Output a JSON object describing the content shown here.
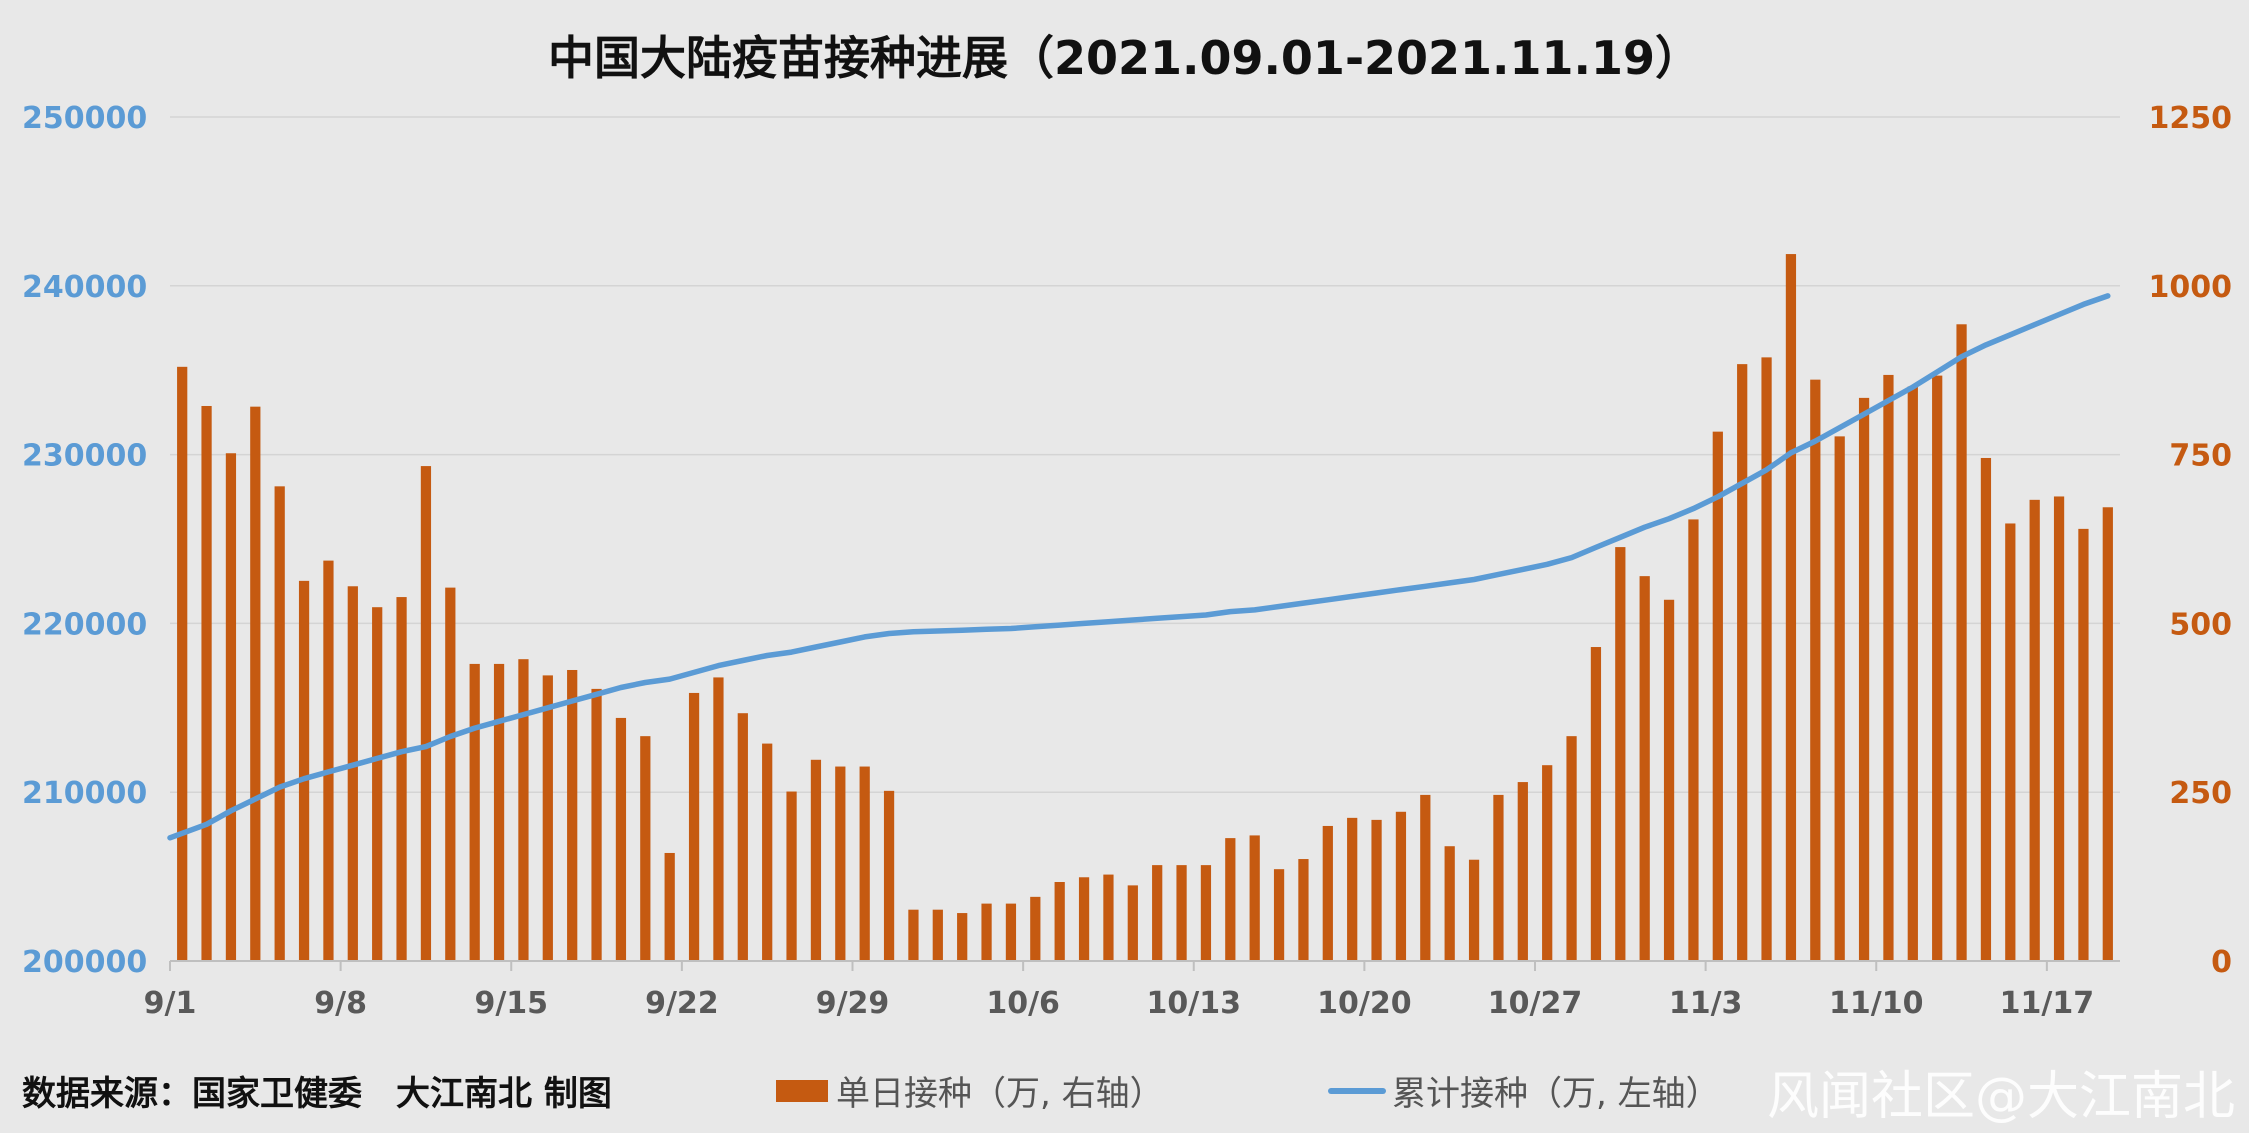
{
  "header": {
    "title": "中国大陆疫苗接种进展（2021.09.01-2021.11.19）"
  },
  "footer": {
    "source": "数据来源：国家卫健委　大江南北 制图",
    "watermark": "风闻社区@大江南北"
  },
  "legend": {
    "bar_label": "单日接种（万, 右轴）",
    "line_label": "累计接种（万, 左轴）"
  },
  "colors": {
    "bar": "#c55a11",
    "line": "#5b9bd5",
    "background": "#e8e8e8",
    "grid": "#d4d4d4"
  },
  "chart_data": {
    "type": "bar+line",
    "title": "中国大陆疫苗接种进展（2021.09.01-2021.11.19）",
    "grid": true,
    "legend_position": "bottom",
    "x_tick_labels": [
      "9/1",
      "9/8",
      "9/15",
      "9/22",
      "9/29",
      "10/6",
      "10/13",
      "10/20",
      "10/27",
      "11/3",
      "11/10",
      "11/17"
    ],
    "y_left": {
      "range": [
        200000,
        250000
      ],
      "ticks": [
        200000,
        210000,
        220000,
        230000,
        240000,
        250000
      ]
    },
    "y_right": {
      "range": [
        0,
        1250
      ],
      "ticks": [
        0,
        250,
        500,
        750,
        1000,
        1250
      ]
    },
    "categories": [
      "9/1",
      "9/2",
      "9/3",
      "9/4",
      "9/5",
      "9/6",
      "9/7",
      "9/8",
      "9/9",
      "9/10",
      "9/11",
      "9/12",
      "9/13",
      "9/14",
      "9/15",
      "9/16",
      "9/17",
      "9/18",
      "9/19",
      "9/20",
      "9/21",
      "9/22",
      "9/23",
      "9/24",
      "9/25",
      "9/26",
      "9/27",
      "9/28",
      "9/29",
      "9/30",
      "10/1",
      "10/2",
      "10/3",
      "10/4",
      "10/5",
      "10/6",
      "10/7",
      "10/8",
      "10/9",
      "10/10",
      "10/11",
      "10/12",
      "10/13",
      "10/14",
      "10/15",
      "10/16",
      "10/17",
      "10/18",
      "10/19",
      "10/20",
      "10/21",
      "10/22",
      "10/23",
      "10/24",
      "10/25",
      "10/26",
      "10/27",
      "10/28",
      "10/29",
      "10/30",
      "10/31",
      "11/1",
      "11/2",
      "11/3",
      "11/4",
      "11/5",
      "11/6",
      "11/7",
      "11/8",
      "11/9",
      "11/10",
      "11/11",
      "11/12",
      "11/13",
      "11/14",
      "11/15",
      "11/16",
      "11/17",
      "11/18",
      "11/19"
    ],
    "series": [
      {
        "name": "单日接种（万, 右轴）",
        "type": "bar",
        "axis": "right",
        "values": [
          880,
          822,
          752,
          821,
          703,
          563,
          593,
          555,
          524,
          539,
          733,
          553,
          440,
          440,
          447,
          423,
          431,
          403,
          360,
          333,
          160,
          397,
          420,
          367,
          322,
          251,
          298,
          288,
          288,
          252,
          76,
          76,
          71,
          85,
          85,
          95,
          117,
          124,
          128,
          112,
          142,
          142,
          142,
          182,
          186,
          136,
          151,
          200,
          212,
          209,
          221,
          246,
          170,
          150,
          246,
          265,
          290,
          333,
          465,
          613,
          570,
          535,
          654,
          784,
          884,
          894,
          1047,
          861,
          777,
          834,
          868,
          851,
          867,
          943,
          745,
          648,
          683,
          688,
          640,
          672
        ]
      },
      {
        "name": "累计接种（万, 左轴）",
        "type": "line",
        "axis": "left",
        "values": [
          207300,
          208100,
          208900,
          209600,
          210300,
          210800,
          211200,
          211600,
          212000,
          212400,
          212700,
          213300,
          213800,
          214200,
          214600,
          215000,
          215400,
          215800,
          216200,
          216500,
          216700,
          217100,
          217500,
          217800,
          218100,
          218300,
          218600,
          218900,
          219200,
          219400,
          219500,
          219550,
          219600,
          219650,
          219700,
          219800,
          219900,
          220000,
          220100,
          220200,
          220300,
          220400,
          220500,
          220700,
          220800,
          221000,
          221200,
          221400,
          221600,
          221800,
          222000,
          222200,
          222400,
          222600,
          222900,
          223200,
          223500,
          223900,
          224500,
          225100,
          225700,
          226200,
          226800,
          227500,
          228300,
          229100,
          230100,
          230800,
          231600,
          232400,
          233200,
          234000,
          234900,
          235800,
          236500,
          237100,
          237700,
          238300,
          238900,
          239400
        ]
      }
    ]
  }
}
